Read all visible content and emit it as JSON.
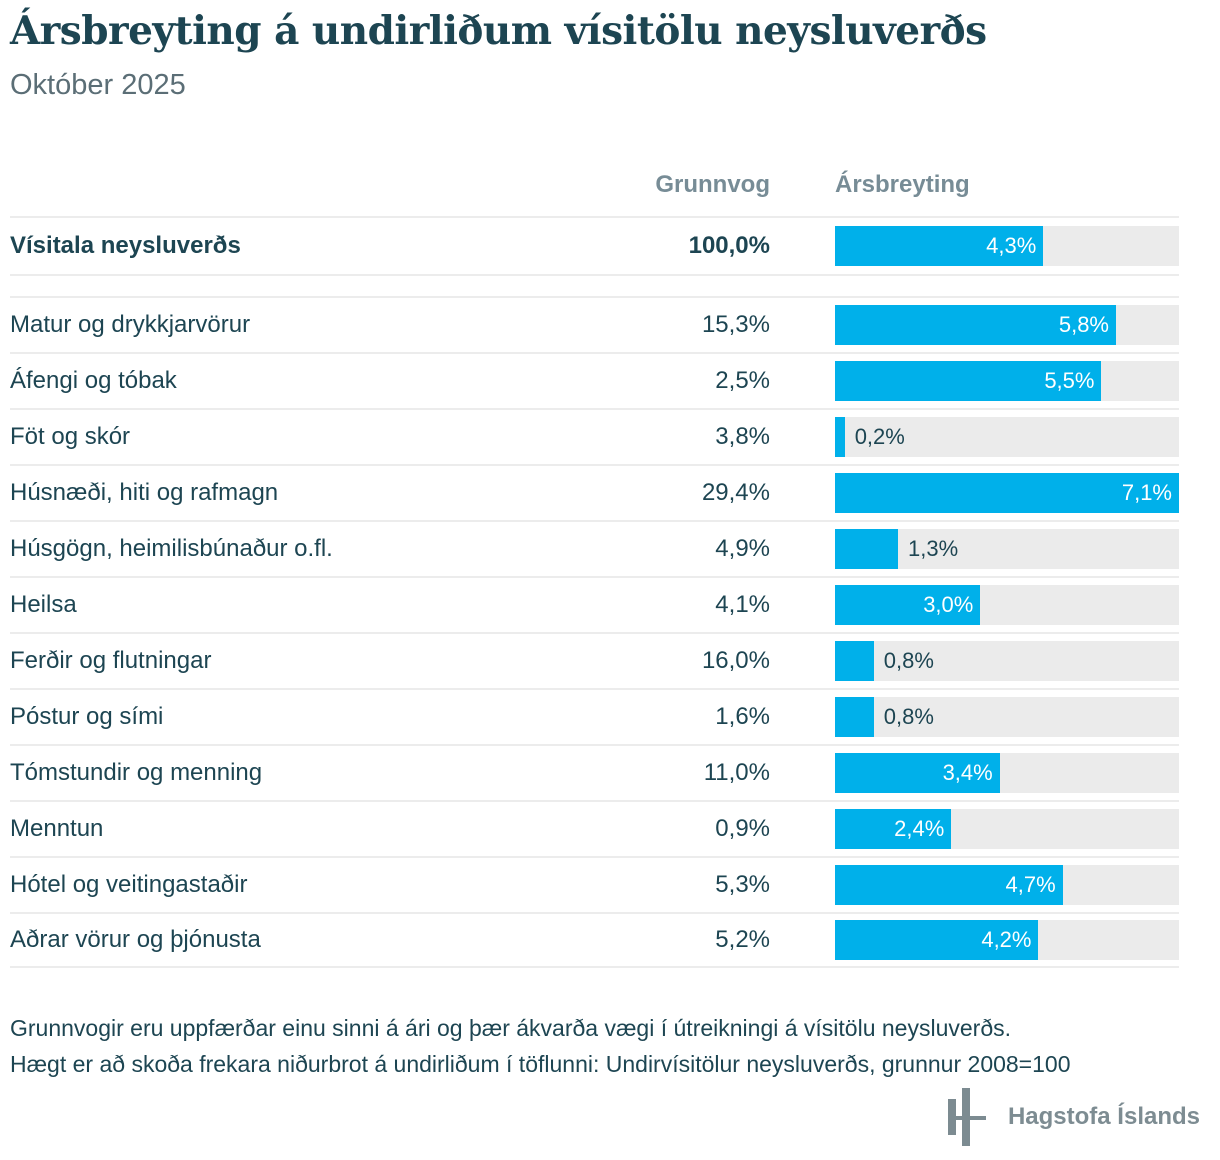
{
  "header": {
    "title": "Ársbreyting á undirliðum vísitölu neysluverðs",
    "subtitle": "Október 2025"
  },
  "table_headers": {
    "weight_column": "Grunnvog",
    "change_column": "Ársbreyting"
  },
  "chart_data": {
    "type": "bar",
    "orientation": "horizontal",
    "title": "Ársbreyting á undirliðum vísitölu neysluverðs",
    "subtitle": "Október 2025",
    "unit": "%",
    "xlim": [
      0,
      7.1
    ],
    "inside_label_min_value": 2.0,
    "columns": [
      "Grunnvog",
      "Ársbreyting"
    ],
    "rows": [
      {
        "label": "Vísitala neysluverðs",
        "weight": "100,0%",
        "value": 4.3,
        "value_label": "4,3%",
        "total": true
      },
      {
        "label": "Matur og drykkjarvörur",
        "weight": "15,3%",
        "value": 5.8,
        "value_label": "5,8%"
      },
      {
        "label": "Áfengi og tóbak",
        "weight": "2,5%",
        "value": 5.5,
        "value_label": "5,5%"
      },
      {
        "label": "Föt og skór",
        "weight": "3,8%",
        "value": 0.2,
        "value_label": "0,2%"
      },
      {
        "label": "Húsnæði, hiti og rafmagn",
        "weight": "29,4%",
        "value": 7.1,
        "value_label": "7,1%"
      },
      {
        "label": "Húsgögn, heimilisbúnaður o.fl.",
        "weight": "4,9%",
        "value": 1.3,
        "value_label": "1,3%"
      },
      {
        "label": "Heilsa",
        "weight": "4,1%",
        "value": 3.0,
        "value_label": "3,0%"
      },
      {
        "label": "Ferðir og flutningar",
        "weight": "16,0%",
        "value": 0.8,
        "value_label": "0,8%"
      },
      {
        "label": "Póstur og sími",
        "weight": "1,6%",
        "value": 0.8,
        "value_label": "0,8%"
      },
      {
        "label": "Tómstundir og menning",
        "weight": "11,0%",
        "value": 3.4,
        "value_label": "3,4%"
      },
      {
        "label": "Menntun",
        "weight": "0,9%",
        "value": 2.4,
        "value_label": "2,4%"
      },
      {
        "label": "Hótel og veitingastaðir",
        "weight": "5,3%",
        "value": 4.7,
        "value_label": "4,7%"
      },
      {
        "label": "Aðrar vörur og þjónusta",
        "weight": "5,2%",
        "value": 4.2,
        "value_label": "4,2%"
      }
    ]
  },
  "footer": {
    "line1": "Grunnvogir eru uppfærðar einu sinni á ári og þær ákvarða vægi í útreikningi á vísitölu neysluverðs.",
    "line2": "Hægt er að skoða frekara niðurbrot á undirliðum í töflunni: Undirvísitölur neysluverðs, grunnur 2008=100"
  },
  "brand": {
    "name": "Hagstofa Íslands",
    "logo": "hagstofa-bars-logo"
  },
  "colors": {
    "bar_blue": "#00b0ea",
    "track_gray": "#ebebeb",
    "separator_gray": "#ececec",
    "text_teal": "#1d4552",
    "header_gray": "#778c96",
    "logo_gray": "#7c8b91"
  }
}
